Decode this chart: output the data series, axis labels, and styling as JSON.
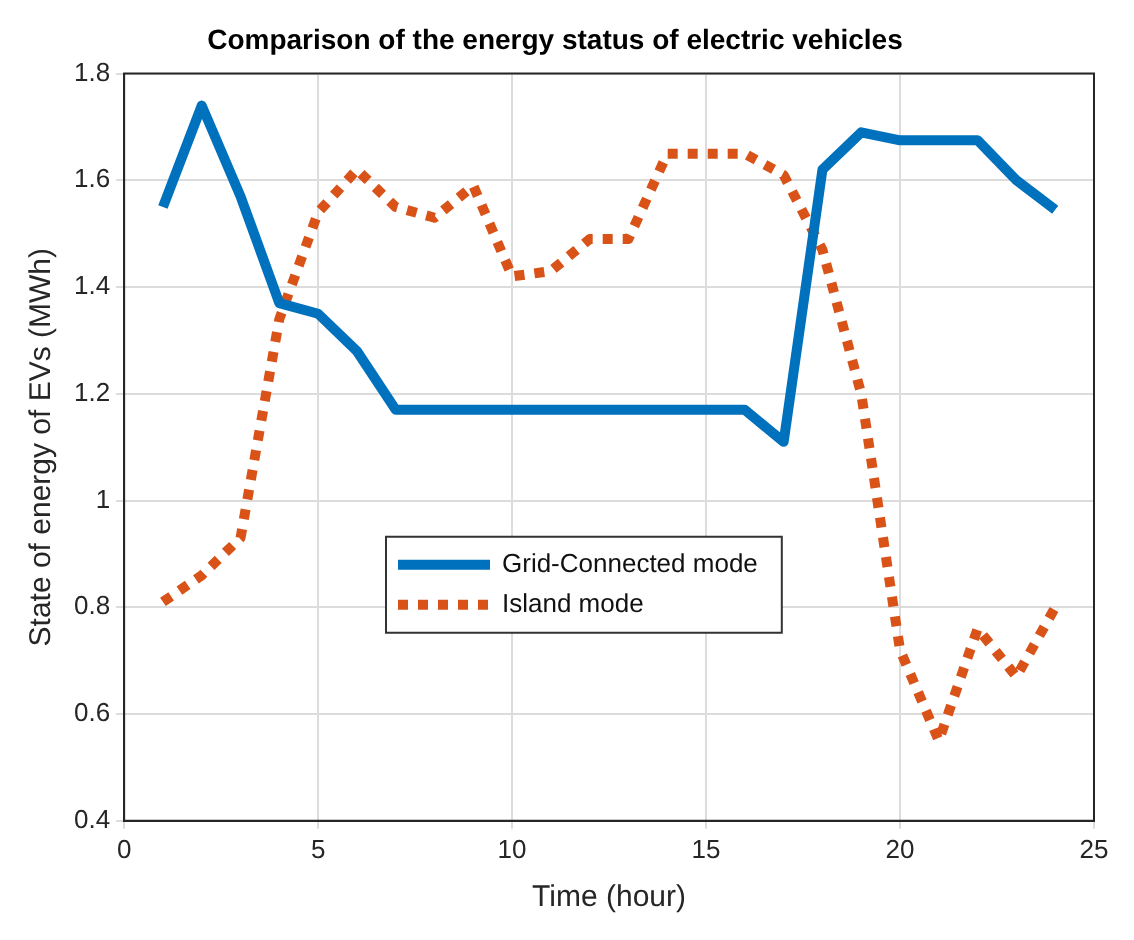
{
  "chart_data": {
    "type": "line",
    "title": "Comparison of the energy status of electric vehicles",
    "xlabel": "Time (hour)",
    "ylabel": "State of energy of EVs (MWh)",
    "x": [
      1,
      2,
      3,
      4,
      5,
      6,
      7,
      8,
      9,
      10,
      11,
      12,
      13,
      14,
      15,
      16,
      17,
      18,
      19,
      20,
      21,
      22,
      23,
      24
    ],
    "series": [
      {
        "name": "Grid-Connected mode",
        "color": "#0072bd",
        "line_style": "solid",
        "values": [
          1.55,
          1.74,
          1.57,
          1.37,
          1.35,
          1.28,
          1.17,
          1.17,
          1.17,
          1.17,
          1.17,
          1.17,
          1.17,
          1.17,
          1.17,
          1.17,
          1.11,
          1.62,
          1.69,
          1.675,
          1.675,
          1.675,
          1.6,
          1.545
        ]
      },
      {
        "name": "Island mode",
        "color": "#d95319",
        "line_style": "dotted",
        "values": [
          0.81,
          0.86,
          0.93,
          1.34,
          1.54,
          1.62,
          1.55,
          1.53,
          1.59,
          1.42,
          1.43,
          1.49,
          1.49,
          1.65,
          1.65,
          1.65,
          1.61,
          1.47,
          1.2,
          0.72,
          0.55,
          0.76,
          0.67,
          0.8
        ]
      }
    ],
    "xlim": [
      0,
      25
    ],
    "xticks": [
      0,
      5,
      10,
      15,
      20,
      25
    ],
    "ylim": [
      0.4,
      1.8
    ],
    "yticks": [
      0.4,
      0.6,
      0.8,
      1,
      1.2,
      1.4,
      1.6,
      1.8
    ],
    "grid": true,
    "legend": "center",
    "marker": "none"
  }
}
